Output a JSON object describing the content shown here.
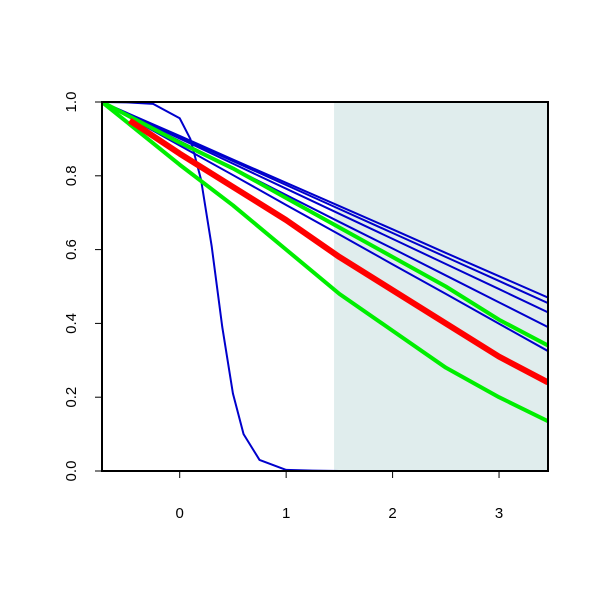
{
  "chart_data": {
    "type": "line",
    "xlim": [
      -0.73,
      3.46
    ],
    "ylim": [
      0,
      1
    ],
    "xticks": [
      0,
      1,
      2,
      3
    ],
    "yticks": [
      {
        "value": 0,
        "label": "0.0"
      },
      {
        "value": 0.2,
        "label": "0.2"
      },
      {
        "value": 0.4,
        "label": "0.4"
      },
      {
        "value": 0.6,
        "label": "0.6"
      },
      {
        "value": 0.8,
        "label": "0.8"
      },
      {
        "value": 1,
        "label": "1.0"
      }
    ],
    "shade": {
      "xlim": [
        1.45,
        3.46
      ],
      "color": "#e0eded"
    },
    "series": [
      {
        "color": "#0000cc",
        "width": 2,
        "x": [
          -0.73,
          0,
          0.5,
          1,
          1.5,
          2,
          2.5,
          3,
          3.46
        ],
        "values": [
          1,
          0.908,
          0.844,
          0.781,
          0.718,
          0.655,
          0.591,
          0.528,
          0.47
        ]
      },
      {
        "color": "#0000cc",
        "width": 2,
        "x": [
          -0.73,
          0,
          0.5,
          1,
          1.5,
          2,
          2.5,
          3,
          3.46
        ],
        "values": [
          1,
          0.905,
          0.84,
          0.775,
          0.71,
          0.645,
          0.58,
          0.515,
          0.455
        ]
      },
      {
        "color": "#0000cc",
        "width": 2,
        "x": [
          -0.73,
          0,
          0.5,
          1,
          1.5,
          2,
          2.5,
          3,
          3.46
        ],
        "values": [
          1,
          0.901,
          0.833,
          0.765,
          0.697,
          0.629,
          0.561,
          0.493,
          0.43
        ]
      },
      {
        "color": "#0000cc",
        "width": 2,
        "x": [
          -0.73,
          0,
          0.5,
          1,
          1.5,
          2,
          2.5,
          3,
          3.46
        ],
        "values": [
          1,
          0.894,
          0.821,
          0.748,
          0.675,
          0.603,
          0.53,
          0.457,
          0.39
        ]
      },
      {
        "color": "#0000cc",
        "width": 2,
        "x": [
          -0.73,
          0,
          0.5,
          1,
          1.5,
          2,
          2.5,
          3,
          3.46
        ],
        "values": [
          1,
          0.882,
          0.802,
          0.721,
          0.641,
          0.56,
          0.48,
          0.399,
          0.325
        ]
      },
      {
        "color": "#0000cc",
        "width": 2,
        "x": [
          -0.73,
          -0.5,
          -0.25,
          0,
          0.1,
          0.2,
          0.3,
          0.35,
          0.4,
          0.5,
          0.6,
          0.75,
          1,
          1.25,
          1.5,
          3.46
        ],
        "values": [
          1,
          0.999,
          0.995,
          0.956,
          0.9,
          0.79,
          0.61,
          0.5,
          0.39,
          0.21,
          0.1,
          0.03,
          0.003,
          0.001,
          0,
          0
        ]
      },
      {
        "color": "#00ee00",
        "width": 4,
        "x": [
          -0.73,
          0,
          0.5,
          1,
          1.5,
          2,
          2.5,
          3,
          3.46
        ],
        "values": [
          1,
          0.89,
          0.82,
          0.74,
          0.66,
          0.58,
          0.5,
          0.41,
          0.34
        ]
      },
      {
        "color": "#00ee00",
        "width": 4,
        "x": [
          -0.73,
          0,
          0.5,
          1,
          1.5,
          2,
          2.5,
          3,
          3.46
        ],
        "values": [
          1,
          0.83,
          0.72,
          0.6,
          0.48,
          0.38,
          0.28,
          0.2,
          0.135
        ]
      },
      {
        "color": "#ff0000",
        "width": 6,
        "x": [
          -0.47,
          0,
          0.5,
          1,
          1.5,
          2,
          2.5,
          3,
          3.46
        ],
        "values": [
          0.95,
          0.86,
          0.77,
          0.68,
          0.58,
          0.49,
          0.4,
          0.31,
          0.24
        ]
      }
    ]
  }
}
